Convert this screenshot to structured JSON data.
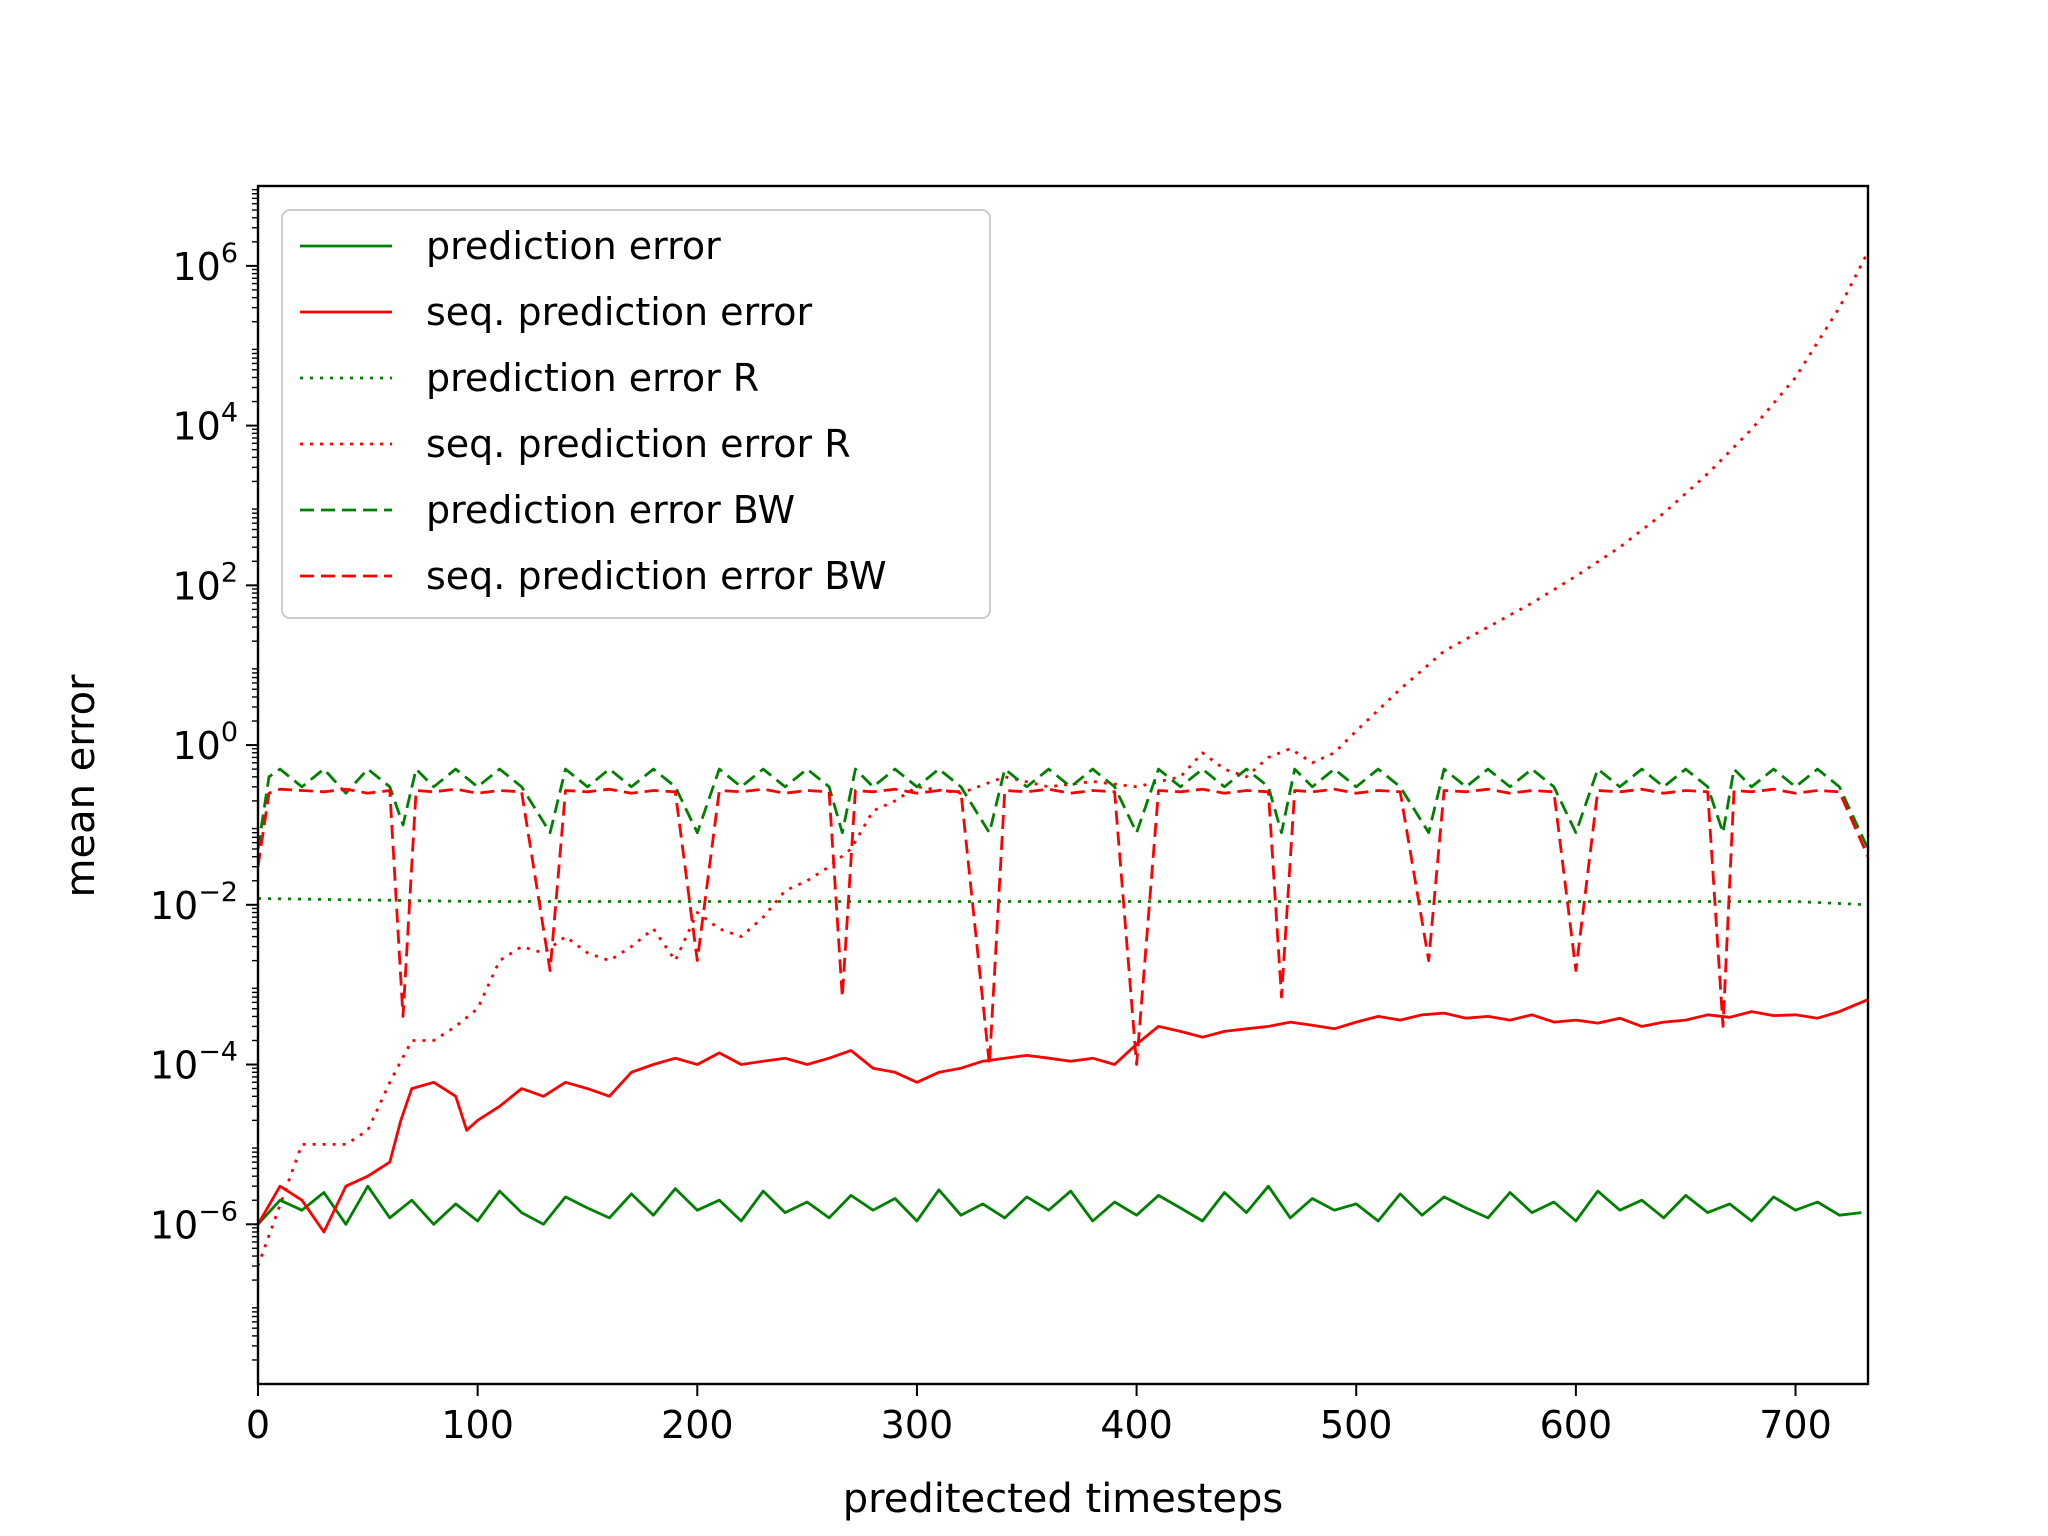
{
  "chart_data": {
    "type": "line",
    "title": "",
    "xlabel": "preditected timesteps",
    "ylabel": "mean error",
    "xlim": [
      0,
      733
    ],
    "ylim": [
      1e-08,
      10000000.0
    ],
    "yscale": "log",
    "grid": false,
    "legend_position": "upper-left",
    "xticks": [
      0,
      100,
      200,
      300,
      400,
      500,
      600,
      700
    ],
    "xtick_labels": [
      "0",
      "100",
      "200",
      "300",
      "400",
      "500",
      "600",
      "700"
    ],
    "yticks": [
      {
        "base": "10",
        "exp": "6",
        "value": 1000000.0
      },
      {
        "base": "10",
        "exp": "4",
        "value": 10000.0
      },
      {
        "base": "10",
        "exp": "2",
        "value": 100.0
      },
      {
        "base": "10",
        "exp": "0",
        "value": 1
      },
      {
        "base": "10",
        "exp": "−2",
        "value": 0.01
      },
      {
        "base": "10",
        "exp": "−4",
        "value": 0.0001
      },
      {
        "base": "10",
        "exp": "−6",
        "value": 1e-06
      }
    ],
    "series": [
      {
        "name": "prediction error",
        "color": "#008000",
        "dash": "solid",
        "x": [
          0,
          10,
          20,
          30,
          40,
          50,
          60,
          70,
          80,
          90,
          100,
          110,
          120,
          130,
          140,
          150,
          160,
          170,
          180,
          190,
          200,
          210,
          220,
          230,
          240,
          250,
          260,
          270,
          280,
          290,
          300,
          310,
          320,
          330,
          340,
          350,
          360,
          370,
          380,
          390,
          400,
          410,
          420,
          430,
          440,
          450,
          460,
          470,
          480,
          490,
          500,
          510,
          520,
          530,
          540,
          550,
          560,
          570,
          580,
          590,
          600,
          610,
          620,
          630,
          640,
          650,
          660,
          670,
          680,
          690,
          700,
          710,
          720,
          730
        ],
        "y": [
          1e-06,
          2e-06,
          1.5e-06,
          2.5e-06,
          1e-06,
          3e-06,
          1.2e-06,
          2e-06,
          1e-06,
          1.8e-06,
          1.1e-06,
          2.6e-06,
          1.4e-06,
          1e-06,
          2.2e-06,
          1.6e-06,
          1.2e-06,
          2.4e-06,
          1.3e-06,
          2.8e-06,
          1.5e-06,
          2e-06,
          1.1e-06,
          2.6e-06,
          1.4e-06,
          1.9e-06,
          1.2e-06,
          2.3e-06,
          1.5e-06,
          2.1e-06,
          1.1e-06,
          2.7e-06,
          1.3e-06,
          1.8e-06,
          1.2e-06,
          2.2e-06,
          1.5e-06,
          2.6e-06,
          1.1e-06,
          1.9e-06,
          1.3e-06,
          2.3e-06,
          1.6e-06,
          1.1e-06,
          2.5e-06,
          1.4e-06,
          3e-06,
          1.2e-06,
          2.1e-06,
          1.5e-06,
          1.8e-06,
          1.1e-06,
          2.4e-06,
          1.3e-06,
          2.2e-06,
          1.6e-06,
          1.2e-06,
          2.5e-06,
          1.4e-06,
          1.9e-06,
          1.1e-06,
          2.6e-06,
          1.5e-06,
          2e-06,
          1.2e-06,
          2.3e-06,
          1.4e-06,
          1.8e-06,
          1.1e-06,
          2.2e-06,
          1.5e-06,
          1.9e-06,
          1.3e-06,
          1.4e-06
        ]
      },
      {
        "name": "seq. prediction error",
        "color": "#ff0000",
        "dash": "solid",
        "x": [
          0,
          10,
          20,
          30,
          40,
          50,
          60,
          65,
          70,
          80,
          90,
          95,
          100,
          110,
          120,
          130,
          140,
          150,
          160,
          170,
          180,
          190,
          200,
          210,
          220,
          230,
          240,
          250,
          260,
          270,
          280,
          290,
          300,
          310,
          320,
          330,
          340,
          350,
          360,
          370,
          380,
          390,
          400,
          410,
          420,
          430,
          440,
          450,
          460,
          470,
          480,
          490,
          500,
          510,
          520,
          530,
          540,
          550,
          560,
          570,
          580,
          590,
          600,
          610,
          620,
          630,
          640,
          650,
          660,
          670,
          680,
          690,
          700,
          710,
          720,
          733
        ],
        "y": [
          1e-06,
          3e-06,
          2e-06,
          8e-07,
          3e-06,
          4e-06,
          6e-06,
          2e-05,
          5e-05,
          6e-05,
          4e-05,
          1.5e-05,
          2e-05,
          3e-05,
          5e-05,
          4e-05,
          6e-05,
          5e-05,
          4e-05,
          8e-05,
          0.0001,
          0.00012,
          0.0001,
          0.00014,
          0.0001,
          0.00011,
          0.00012,
          0.0001,
          0.00012,
          0.00015,
          9e-05,
          8e-05,
          6e-05,
          8e-05,
          9e-05,
          0.00011,
          0.00012,
          0.00013,
          0.00012,
          0.00011,
          0.00012,
          0.0001,
          0.00018,
          0.0003,
          0.00026,
          0.00022,
          0.00026,
          0.00028,
          0.0003,
          0.00034,
          0.00031,
          0.00028,
          0.00034,
          0.0004,
          0.00036,
          0.00042,
          0.00044,
          0.00038,
          0.0004,
          0.00036,
          0.00042,
          0.00034,
          0.00036,
          0.00033,
          0.00038,
          0.0003,
          0.00034,
          0.00036,
          0.00042,
          0.00039,
          0.00046,
          0.00041,
          0.00042,
          0.00038,
          0.00046,
          0.00065
        ]
      },
      {
        "name": "prediction error R",
        "color": "#008000",
        "dash": "dotted",
        "x": [
          0,
          100,
          200,
          300,
          400,
          500,
          600,
          700,
          733
        ],
        "y": [
          0.012,
          0.011,
          0.011,
          0.011,
          0.011,
          0.011,
          0.011,
          0.011,
          0.01
        ]
      },
      {
        "name": "seq. prediction error R",
        "color": "#ff0000",
        "dash": "dotted",
        "x": [
          0,
          20,
          40,
          50,
          60,
          70,
          80,
          90,
          100,
          110,
          120,
          130,
          140,
          150,
          160,
          170,
          180,
          190,
          200,
          210,
          220,
          230,
          240,
          250,
          260,
          270,
          280,
          290,
          300,
          320,
          340,
          360,
          380,
          400,
          420,
          430,
          440,
          450,
          460,
          470,
          480,
          490,
          500,
          520,
          540,
          560,
          580,
          600,
          620,
          640,
          660,
          680,
          700,
          720,
          733
        ],
        "y": [
          3e-07,
          1e-05,
          1e-05,
          1.5e-05,
          6e-05,
          0.0002,
          0.0002,
          0.0003,
          0.0005,
          0.002,
          0.003,
          0.0025,
          0.004,
          0.0025,
          0.002,
          0.003,
          0.005,
          0.002,
          0.008,
          0.005,
          0.004,
          0.007,
          0.015,
          0.02,
          0.03,
          0.05,
          0.15,
          0.2,
          0.3,
          0.25,
          0.4,
          0.3,
          0.35,
          0.3,
          0.4,
          0.8,
          0.5,
          0.4,
          0.7,
          0.9,
          0.6,
          0.8,
          1.5,
          5,
          15,
          30,
          60,
          130,
          300,
          800,
          2500,
          9000,
          40000,
          300000,
          1500000
        ]
      },
      {
        "name": "prediction error BW",
        "color": "#008000",
        "dash": "dashed",
        "x": [
          0,
          5,
          10,
          20,
          30,
          40,
          50,
          60,
          66,
          72,
          80,
          90,
          100,
          110,
          120,
          133,
          140,
          150,
          160,
          170,
          180,
          190,
          200,
          210,
          220,
          230,
          240,
          250,
          260,
          266,
          272,
          280,
          290,
          300,
          310,
          320,
          333,
          340,
          350,
          360,
          370,
          380,
          390,
          400,
          410,
          420,
          430,
          440,
          450,
          460,
          466,
          472,
          480,
          490,
          500,
          510,
          520,
          533,
          540,
          550,
          560,
          570,
          580,
          590,
          600,
          610,
          620,
          630,
          640,
          650,
          660,
          667,
          672,
          680,
          690,
          700,
          710,
          720,
          733
        ],
        "y": [
          0.05,
          0.4,
          0.5,
          0.3,
          0.5,
          0.25,
          0.5,
          0.3,
          0.1,
          0.5,
          0.3,
          0.5,
          0.3,
          0.5,
          0.3,
          0.08,
          0.5,
          0.3,
          0.5,
          0.3,
          0.5,
          0.3,
          0.08,
          0.5,
          0.3,
          0.5,
          0.3,
          0.5,
          0.3,
          0.08,
          0.5,
          0.3,
          0.5,
          0.3,
          0.5,
          0.3,
          0.08,
          0.5,
          0.3,
          0.5,
          0.3,
          0.5,
          0.3,
          0.08,
          0.5,
          0.3,
          0.5,
          0.3,
          0.5,
          0.3,
          0.08,
          0.5,
          0.3,
          0.5,
          0.3,
          0.5,
          0.3,
          0.08,
          0.5,
          0.3,
          0.5,
          0.3,
          0.5,
          0.3,
          0.08,
          0.5,
          0.3,
          0.5,
          0.3,
          0.5,
          0.3,
          0.08,
          0.5,
          0.3,
          0.5,
          0.3,
          0.5,
          0.3,
          0.05
        ]
      },
      {
        "name": "seq. prediction error BW",
        "color": "#ff0000",
        "dash": "dashed",
        "x": [
          0,
          5,
          10,
          20,
          30,
          40,
          50,
          60,
          66,
          72,
          80,
          90,
          100,
          110,
          120,
          133,
          140,
          150,
          160,
          170,
          180,
          190,
          200,
          210,
          220,
          230,
          240,
          250,
          260,
          266,
          272,
          280,
          290,
          300,
          310,
          320,
          333,
          340,
          350,
          360,
          370,
          380,
          390,
          400,
          410,
          420,
          430,
          440,
          450,
          460,
          466,
          472,
          480,
          490,
          500,
          510,
          520,
          533,
          540,
          550,
          560,
          570,
          580,
          590,
          600,
          610,
          620,
          630,
          640,
          650,
          660,
          667,
          672,
          680,
          690,
          700,
          710,
          720,
          733
        ],
        "y": [
          0.03,
          0.25,
          0.28,
          0.27,
          0.26,
          0.28,
          0.25,
          0.27,
          0.0004,
          0.27,
          0.26,
          0.28,
          0.25,
          0.27,
          0.26,
          0.0015,
          0.27,
          0.26,
          0.28,
          0.25,
          0.27,
          0.26,
          0.002,
          0.27,
          0.26,
          0.28,
          0.25,
          0.27,
          0.26,
          0.0007,
          0.27,
          0.26,
          0.28,
          0.25,
          0.27,
          0.26,
          0.0001,
          0.27,
          0.26,
          0.28,
          0.25,
          0.27,
          0.26,
          0.0001,
          0.27,
          0.26,
          0.28,
          0.25,
          0.27,
          0.26,
          0.0007,
          0.27,
          0.26,
          0.28,
          0.25,
          0.27,
          0.26,
          0.002,
          0.27,
          0.26,
          0.28,
          0.25,
          0.27,
          0.26,
          0.0015,
          0.27,
          0.26,
          0.28,
          0.25,
          0.27,
          0.26,
          0.0003,
          0.27,
          0.26,
          0.28,
          0.25,
          0.27,
          0.26,
          0.04
        ]
      }
    ]
  }
}
